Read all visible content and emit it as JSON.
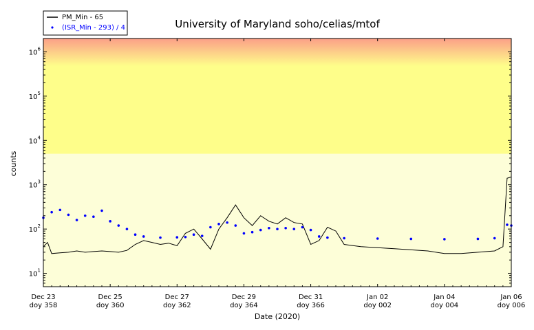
{
  "chart_data": {
    "type": "line",
    "title": "University of Maryland  soho/celias/mtof",
    "xlabel": "Date (2020)",
    "ylabel": "counts",
    "yscale": "log",
    "ylim": [
      5,
      2000000
    ],
    "xlim": [
      "2020-12-23",
      "2021-01-06"
    ],
    "x_ticks": [
      {
        "date": "2020-12-23",
        "label1": "Dec 23",
        "label2": "doy 358"
      },
      {
        "date": "2020-12-25",
        "label1": "Dec 25",
        "label2": "doy 360"
      },
      {
        "date": "2020-12-27",
        "label1": "Dec 27",
        "label2": "doy 362"
      },
      {
        "date": "2020-12-29",
        "label1": "Dec 29",
        "label2": "doy 364"
      },
      {
        "date": "2020-12-31",
        "label1": "Dec 31",
        "label2": "doy 366"
      },
      {
        "date": "2021-01-02",
        "label1": "Jan 02",
        "label2": "doy 002"
      },
      {
        "date": "2021-01-04",
        "label1": "Jan 04",
        "label2": "doy 004"
      },
      {
        "date": "2021-01-06",
        "label1": "Jan 06",
        "label2": "doy 006"
      }
    ],
    "y_ticks": [
      {
        "value": 10,
        "base": "10",
        "exp": "1"
      },
      {
        "value": 100,
        "base": "10",
        "exp": "2"
      },
      {
        "value": 1000,
        "base": "10",
        "exp": "3"
      },
      {
        "value": 10000,
        "base": "10",
        "exp": "4"
      },
      {
        "value": 100000,
        "base": "10",
        "exp": "5"
      },
      {
        "value": 1000000,
        "base": "10",
        "exp": "6"
      }
    ],
    "background_bands": [
      {
        "from": 5,
        "to": 5000,
        "color": "#fdfed8"
      },
      {
        "from": 5000,
        "to": 2000000,
        "color": "#fefe8a",
        "top_gradient_color": "#fb9f88"
      }
    ],
    "legend_position": "upper-left",
    "series": [
      {
        "name": "PM_Min - 65",
        "style": "line",
        "color": "#000000",
        "points": [
          [
            "2020-12-23T00:00",
            40
          ],
          [
            "2020-12-23T03:00",
            50
          ],
          [
            "2020-12-23T06:00",
            28
          ],
          [
            "2020-12-23T12:00",
            29
          ],
          [
            "2020-12-23T18:00",
            30
          ],
          [
            "2020-12-24T00:00",
            32
          ],
          [
            "2020-12-24T06:00",
            30
          ],
          [
            "2020-12-24T12:00",
            31
          ],
          [
            "2020-12-24T18:00",
            32
          ],
          [
            "2020-12-25T00:00",
            31
          ],
          [
            "2020-12-25T06:00",
            30
          ],
          [
            "2020-12-25T12:00",
            33
          ],
          [
            "2020-12-25T18:00",
            45
          ],
          [
            "2020-12-26T00:00",
            55
          ],
          [
            "2020-12-26T06:00",
            50
          ],
          [
            "2020-12-26T12:00",
            45
          ],
          [
            "2020-12-26T18:00",
            48
          ],
          [
            "2020-12-27T00:00",
            42
          ],
          [
            "2020-12-27T06:00",
            80
          ],
          [
            "2020-12-27T12:00",
            100
          ],
          [
            "2020-12-27T18:00",
            60
          ],
          [
            "2020-12-28T00:00",
            35
          ],
          [
            "2020-12-28T06:00",
            100
          ],
          [
            "2020-12-28T12:00",
            180
          ],
          [
            "2020-12-28T18:00",
            350
          ],
          [
            "2020-12-29T00:00",
            180
          ],
          [
            "2020-12-29T06:00",
            120
          ],
          [
            "2020-12-29T12:00",
            200
          ],
          [
            "2020-12-29T18:00",
            150
          ],
          [
            "2020-12-30T00:00",
            130
          ],
          [
            "2020-12-30T06:00",
            180
          ],
          [
            "2020-12-30T12:00",
            140
          ],
          [
            "2020-12-30T18:00",
            130
          ],
          [
            "2020-12-31T00:00",
            45
          ],
          [
            "2020-12-31T06:00",
            55
          ],
          [
            "2020-12-31T12:00",
            110
          ],
          [
            "2020-12-31T18:00",
            90
          ],
          [
            "2021-01-01T00:00",
            45
          ],
          [
            "2021-01-01T12:00",
            40
          ],
          [
            "2021-01-02T00:00",
            38
          ],
          [
            "2021-01-02T12:00",
            36
          ],
          [
            "2021-01-03T00:00",
            34
          ],
          [
            "2021-01-03T12:00",
            32
          ],
          [
            "2021-01-04T00:00",
            28
          ],
          [
            "2021-01-04T12:00",
            28
          ],
          [
            "2021-01-05T00:00",
            30
          ],
          [
            "2021-01-05T12:00",
            32
          ],
          [
            "2021-01-05T18:00",
            40
          ],
          [
            "2021-01-05T21:00",
            1400
          ],
          [
            "2021-01-06T00:00",
            1500
          ]
        ]
      },
      {
        "name": "(ISR_Min - 293) / 4",
        "style": "dots",
        "color": "#0000ff",
        "points": [
          [
            "2020-12-23T00:00",
            180
          ],
          [
            "2020-12-23T06:00",
            240
          ],
          [
            "2020-12-23T12:00",
            270
          ],
          [
            "2020-12-23T18:00",
            210
          ],
          [
            "2020-12-24T00:00",
            160
          ],
          [
            "2020-12-24T06:00",
            200
          ],
          [
            "2020-12-24T12:00",
            190
          ],
          [
            "2020-12-24T18:00",
            260
          ],
          [
            "2020-12-25T00:00",
            150
          ],
          [
            "2020-12-25T06:00",
            120
          ],
          [
            "2020-12-25T12:00",
            100
          ],
          [
            "2020-12-25T18:00",
            75
          ],
          [
            "2020-12-26T00:00",
            68
          ],
          [
            "2020-12-26T12:00",
            64
          ],
          [
            "2020-12-27T00:00",
            65
          ],
          [
            "2020-12-27T06:00",
            66
          ],
          [
            "2020-12-27T12:00",
            75
          ],
          [
            "2020-12-27T18:00",
            70
          ],
          [
            "2020-12-28T00:00",
            110
          ],
          [
            "2020-12-28T06:00",
            130
          ],
          [
            "2020-12-28T12:00",
            140
          ],
          [
            "2020-12-28T18:00",
            120
          ],
          [
            "2020-12-29T00:00",
            80
          ],
          [
            "2020-12-29T06:00",
            85
          ],
          [
            "2020-12-29T12:00",
            95
          ],
          [
            "2020-12-29T18:00",
            105
          ],
          [
            "2020-12-30T00:00",
            100
          ],
          [
            "2020-12-30T06:00",
            105
          ],
          [
            "2020-12-30T12:00",
            100
          ],
          [
            "2020-12-30T18:00",
            110
          ],
          [
            "2020-12-31T00:00",
            95
          ],
          [
            "2020-12-31T06:00",
            68
          ],
          [
            "2020-12-31T12:00",
            64
          ],
          [
            "2021-01-01T00:00",
            62
          ],
          [
            "2021-01-02T00:00",
            61
          ],
          [
            "2021-01-03T00:00",
            60
          ],
          [
            "2021-01-04T00:00",
            59
          ],
          [
            "2021-01-05T00:00",
            60
          ],
          [
            "2021-01-05T12:00",
            62
          ],
          [
            "2021-01-05T21:00",
            125
          ],
          [
            "2021-01-06T00:00",
            120
          ]
        ]
      }
    ]
  }
}
